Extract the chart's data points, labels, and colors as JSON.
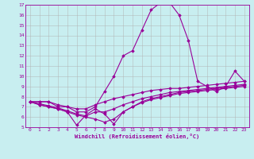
{
  "xlabel": "Windchill (Refroidissement éolien,°C)",
  "bg_color": "#c8eef0",
  "line_color": "#990099",
  "grid_color": "#b0b0b0",
  "xlim": [
    -0.5,
    23.5
  ],
  "ylim": [
    5,
    17
  ],
  "yticks": [
    5,
    6,
    7,
    8,
    9,
    10,
    11,
    12,
    13,
    14,
    15,
    16,
    17
  ],
  "xticks": [
    0,
    1,
    2,
    3,
    4,
    5,
    6,
    7,
    8,
    9,
    10,
    11,
    12,
    13,
    14,
    15,
    16,
    17,
    18,
    19,
    20,
    21,
    22,
    23
  ],
  "lines": [
    {
      "x": [
        0,
        1,
        2,
        3,
        4,
        5,
        6,
        7,
        8,
        9,
        10,
        11,
        12,
        13,
        14,
        15,
        16,
        17,
        18,
        19,
        20,
        21,
        22,
        23
      ],
      "y": [
        7.5,
        7.5,
        7.5,
        7.0,
        7.0,
        6.5,
        6.5,
        7.0,
        8.5,
        10.0,
        12.0,
        12.5,
        14.5,
        16.5,
        17.2,
        17.2,
        16.0,
        13.5,
        9.5,
        9.0,
        8.5,
        9.0,
        10.5,
        9.5
      ]
    },
    {
      "x": [
        0,
        1,
        2,
        3,
        4,
        5,
        6,
        7,
        8,
        9,
        10,
        11,
        12,
        13,
        14,
        15,
        16,
        17,
        18,
        19,
        20,
        21,
        22,
        23
      ],
      "y": [
        7.5,
        7.5,
        7.5,
        7.2,
        7.0,
        6.8,
        6.8,
        7.2,
        7.5,
        7.8,
        8.0,
        8.2,
        8.4,
        8.6,
        8.7,
        8.8,
        8.8,
        8.9,
        9.0,
        9.1,
        9.2,
        9.3,
        9.4,
        9.5
      ]
    },
    {
      "x": [
        0,
        1,
        2,
        3,
        4,
        5,
        6,
        7,
        8,
        9,
        10,
        11,
        12,
        13,
        14,
        15,
        16,
        17,
        18,
        19,
        20,
        21,
        22,
        23
      ],
      "y": [
        7.5,
        7.2,
        7.0,
        6.8,
        6.5,
        5.2,
        6.2,
        6.8,
        6.3,
        5.3,
        6.5,
        7.0,
        7.5,
        7.8,
        8.0,
        8.2,
        8.4,
        8.5,
        8.6,
        8.7,
        8.8,
        8.9,
        9.0,
        9.1
      ]
    },
    {
      "x": [
        0,
        1,
        2,
        3,
        4,
        5,
        6,
        7,
        8,
        9,
        10,
        11,
        12,
        13,
        14,
        15,
        16,
        17,
        18,
        19,
        20,
        21,
        22,
        23
      ],
      "y": [
        7.5,
        7.3,
        7.1,
        6.9,
        6.6,
        6.3,
        6.1,
        6.5,
        6.5,
        6.8,
        7.2,
        7.5,
        7.8,
        8.0,
        8.2,
        8.4,
        8.5,
        8.6,
        8.7,
        8.8,
        8.9,
        9.0,
        9.1,
        9.2
      ]
    },
    {
      "x": [
        0,
        1,
        2,
        3,
        4,
        5,
        6,
        7,
        8,
        9,
        10,
        11,
        12,
        13,
        14,
        15,
        16,
        17,
        18,
        19,
        20,
        21,
        22,
        23
      ],
      "y": [
        7.5,
        7.2,
        7.0,
        6.8,
        6.5,
        6.2,
        6.0,
        5.8,
        5.5,
        5.8,
        6.5,
        7.0,
        7.4,
        7.7,
        7.9,
        8.1,
        8.3,
        8.4,
        8.5,
        8.6,
        8.7,
        8.8,
        8.9,
        9.0
      ]
    }
  ]
}
